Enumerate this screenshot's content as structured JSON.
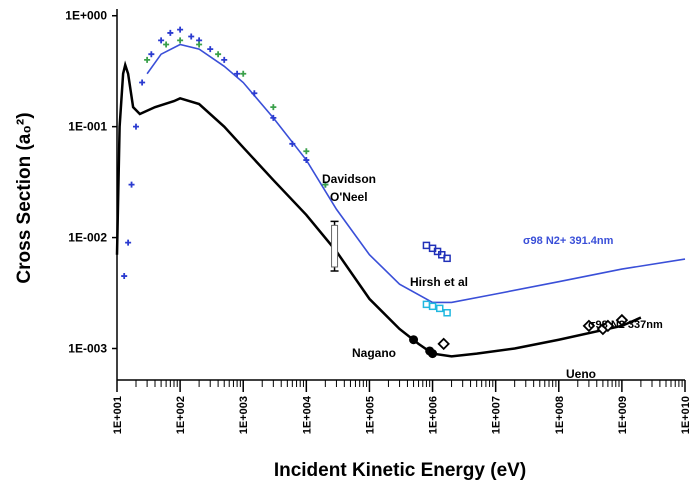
{
  "chart_data": {
    "type": "scatter",
    "x_label": "Incident Kinetic Energy (eV)",
    "y_label": "Cross Section (a₀²)",
    "log_x": true,
    "log_y": true,
    "xlim": [
      10,
      10000000000
    ],
    "ylim": [
      0.00052,
      1.15
    ],
    "xticks": [
      {
        "value": 10,
        "label": "1E+001"
      },
      {
        "value": 100,
        "label": "1E+002"
      },
      {
        "value": 1000,
        "label": "1E+003"
      },
      {
        "value": 10000,
        "label": "1E+004"
      },
      {
        "value": 100000,
        "label": "1E+005"
      },
      {
        "value": 1000000,
        "label": "1E+006"
      },
      {
        "value": 10000000,
        "label": "1E+007"
      },
      {
        "value": 100000000,
        "label": "1E+008"
      },
      {
        "value": 1000000000,
        "label": "1E+009"
      },
      {
        "value": 10000000000,
        "label": "1E+010"
      }
    ],
    "yticks": [
      {
        "value": 0.001,
        "label": "1E-003"
      },
      {
        "value": 0.01,
        "label": "1E-002"
      },
      {
        "value": 0.1,
        "label": "1E-001"
      },
      {
        "value": 1,
        "label": "1E+000"
      }
    ],
    "series": [
      {
        "name": "σ98 N2+ 391.4nm",
        "color": "#3a4fd8",
        "style": "line",
        "x": [
          30,
          50,
          100,
          200,
          500,
          1000,
          3000,
          10000,
          30000,
          100000,
          300000,
          1000000,
          2000000,
          10000000,
          100000000,
          1000000000,
          10000000000
        ],
        "values": [
          0.3,
          0.45,
          0.55,
          0.5,
          0.35,
          0.25,
          0.12,
          0.05,
          0.018,
          0.007,
          0.0038,
          0.0026,
          0.0026,
          0.0031,
          0.004,
          0.0052,
          0.0064
        ]
      },
      {
        "name": "σ98 N2 337nm",
        "color": "#000000",
        "style": "line",
        "x": [
          10,
          11,
          12.5,
          13.5,
          15,
          18,
          23,
          40,
          80,
          100,
          200,
          500,
          1000,
          3000,
          10000,
          30000,
          100000,
          300000,
          600000,
          1000000,
          2000000,
          5000000,
          20000000,
          100000000,
          1000000000,
          2000000000
        ],
        "values": [
          0.007,
          0.1,
          0.3,
          0.36,
          0.3,
          0.15,
          0.13,
          0.15,
          0.17,
          0.18,
          0.16,
          0.1,
          0.065,
          0.033,
          0.016,
          0.0075,
          0.0028,
          0.0015,
          0.0011,
          0.0009,
          0.00085,
          0.0009,
          0.001,
          0.0012,
          0.0016,
          0.0019
        ]
      },
      {
        "color": "#2b3bd0",
        "style": "cross",
        "x": [
          13,
          15,
          17,
          20,
          25,
          35,
          50,
          70,
          100,
          150,
          200,
          300,
          500,
          800,
          1500,
          3000,
          6000,
          10000,
          20000
        ],
        "values": [
          0.0045,
          0.009,
          0.03,
          0.1,
          0.25,
          0.45,
          0.6,
          0.7,
          0.75,
          0.65,
          0.6,
          0.5,
          0.4,
          0.3,
          0.2,
          0.12,
          0.07,
          0.05,
          0.03
        ]
      },
      {
        "color": "#3aa04a",
        "style": "cross",
        "x": [
          30,
          60,
          100,
          200,
          400,
          1000,
          3000,
          10000,
          20000
        ],
        "values": [
          0.4,
          0.55,
          0.6,
          0.55,
          0.45,
          0.3,
          0.15,
          0.06,
          0.03
        ]
      },
      {
        "color": "#2030b8",
        "style": "square",
        "x": [
          800000,
          1000000,
          1200000,
          1400000,
          1700000
        ],
        "values": [
          0.0085,
          0.008,
          0.0075,
          0.007,
          0.0065
        ]
      },
      {
        "color": "#20b8e0",
        "style": "square",
        "x": [
          800000,
          1000000,
          1300000,
          1700000
        ],
        "values": [
          0.0025,
          0.0024,
          0.0023,
          0.0021
        ]
      },
      {
        "color": "#000000",
        "style": "dot",
        "x": [
          500000,
          900000,
          1000000
        ],
        "values": [
          0.0012,
          0.00095,
          0.0009
        ]
      },
      {
        "color": "#000000",
        "style": "diamond",
        "x": [
          1500000,
          300000000,
          500000000,
          600000000,
          1000000000
        ],
        "values": [
          0.0011,
          0.0016,
          0.0015,
          0.0016,
          0.0018
        ]
      }
    ],
    "error_bar": {
      "x": 28000,
      "low": 0.005,
      "high": 0.014
    },
    "annotations": [
      "Davidson",
      "O'Neel",
      "Hirsh et al",
      "Nagano",
      "Ueno"
    ]
  }
}
